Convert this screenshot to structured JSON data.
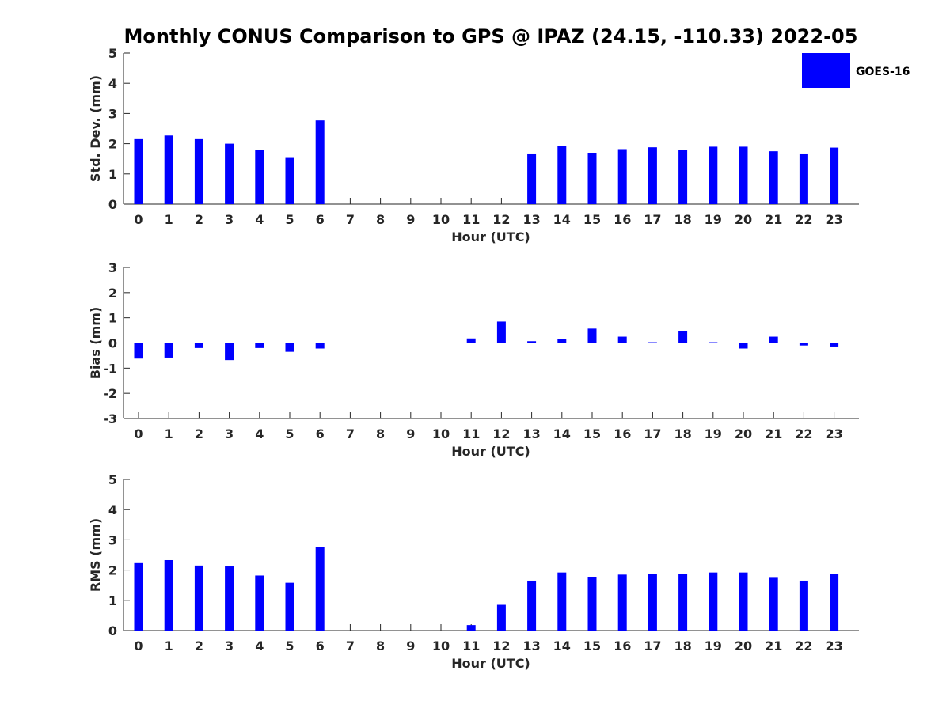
{
  "title": "Monthly CONUS Comparison to GPS @ IPAZ (24.15, -110.33) 2022-05",
  "legend": {
    "label": "GOES-16",
    "color": "#0000ff"
  },
  "bar_color": "#0000ff",
  "chart_data": [
    {
      "type": "bar",
      "xlabel": "Hour (UTC)",
      "ylabel": "Std. Dev. (mm)",
      "ylim": [
        0,
        5
      ],
      "yticks": [
        0,
        1,
        2,
        3,
        4,
        5
      ],
      "categories": [
        "0",
        "1",
        "2",
        "3",
        "4",
        "5",
        "6",
        "7",
        "8",
        "9",
        "10",
        "11",
        "12",
        "13",
        "14",
        "15",
        "16",
        "17",
        "18",
        "19",
        "20",
        "21",
        "22",
        "23"
      ],
      "series": [
        {
          "name": "GOES-16",
          "values": [
            2.15,
            2.27,
            2.15,
            2.0,
            1.8,
            1.53,
            2.77,
            null,
            null,
            null,
            null,
            null,
            null,
            1.65,
            1.93,
            1.7,
            1.82,
            1.88,
            1.8,
            1.9,
            1.9,
            1.75,
            1.65,
            1.87
          ]
        }
      ]
    },
    {
      "type": "bar",
      "xlabel": "Hour (UTC)",
      "ylabel": "Bias (mm)",
      "ylim": [
        -3,
        3
      ],
      "yticks": [
        -3,
        -2,
        -1,
        0,
        1,
        2,
        3
      ],
      "categories": [
        "0",
        "1",
        "2",
        "3",
        "4",
        "5",
        "6",
        "7",
        "8",
        "9",
        "10",
        "11",
        "12",
        "13",
        "14",
        "15",
        "16",
        "17",
        "18",
        "19",
        "20",
        "21",
        "22",
        "23"
      ],
      "series": [
        {
          "name": "GOES-16",
          "values": [
            -0.62,
            -0.58,
            -0.2,
            -0.68,
            -0.2,
            -0.35,
            -0.22,
            null,
            null,
            null,
            null,
            0.18,
            0.85,
            0.07,
            0.15,
            0.57,
            0.25,
            0.03,
            0.47,
            0.03,
            -0.22,
            0.25,
            -0.1,
            -0.14
          ]
        }
      ]
    },
    {
      "type": "bar",
      "xlabel": "Hour (UTC)",
      "ylabel": "RMS (mm)",
      "ylim": [
        0,
        5
      ],
      "yticks": [
        0,
        1,
        2,
        3,
        4,
        5
      ],
      "categories": [
        "0",
        "1",
        "2",
        "3",
        "4",
        "5",
        "6",
        "7",
        "8",
        "9",
        "10",
        "11",
        "12",
        "13",
        "14",
        "15",
        "16",
        "17",
        "18",
        "19",
        "20",
        "21",
        "22",
        "23"
      ],
      "series": [
        {
          "name": "GOES-16",
          "values": [
            2.23,
            2.33,
            2.15,
            2.12,
            1.82,
            1.58,
            2.77,
            null,
            null,
            null,
            null,
            0.18,
            0.85,
            1.65,
            1.92,
            1.78,
            1.85,
            1.87,
            1.87,
            1.92,
            1.92,
            1.77,
            1.65,
            1.87
          ]
        }
      ]
    }
  ]
}
